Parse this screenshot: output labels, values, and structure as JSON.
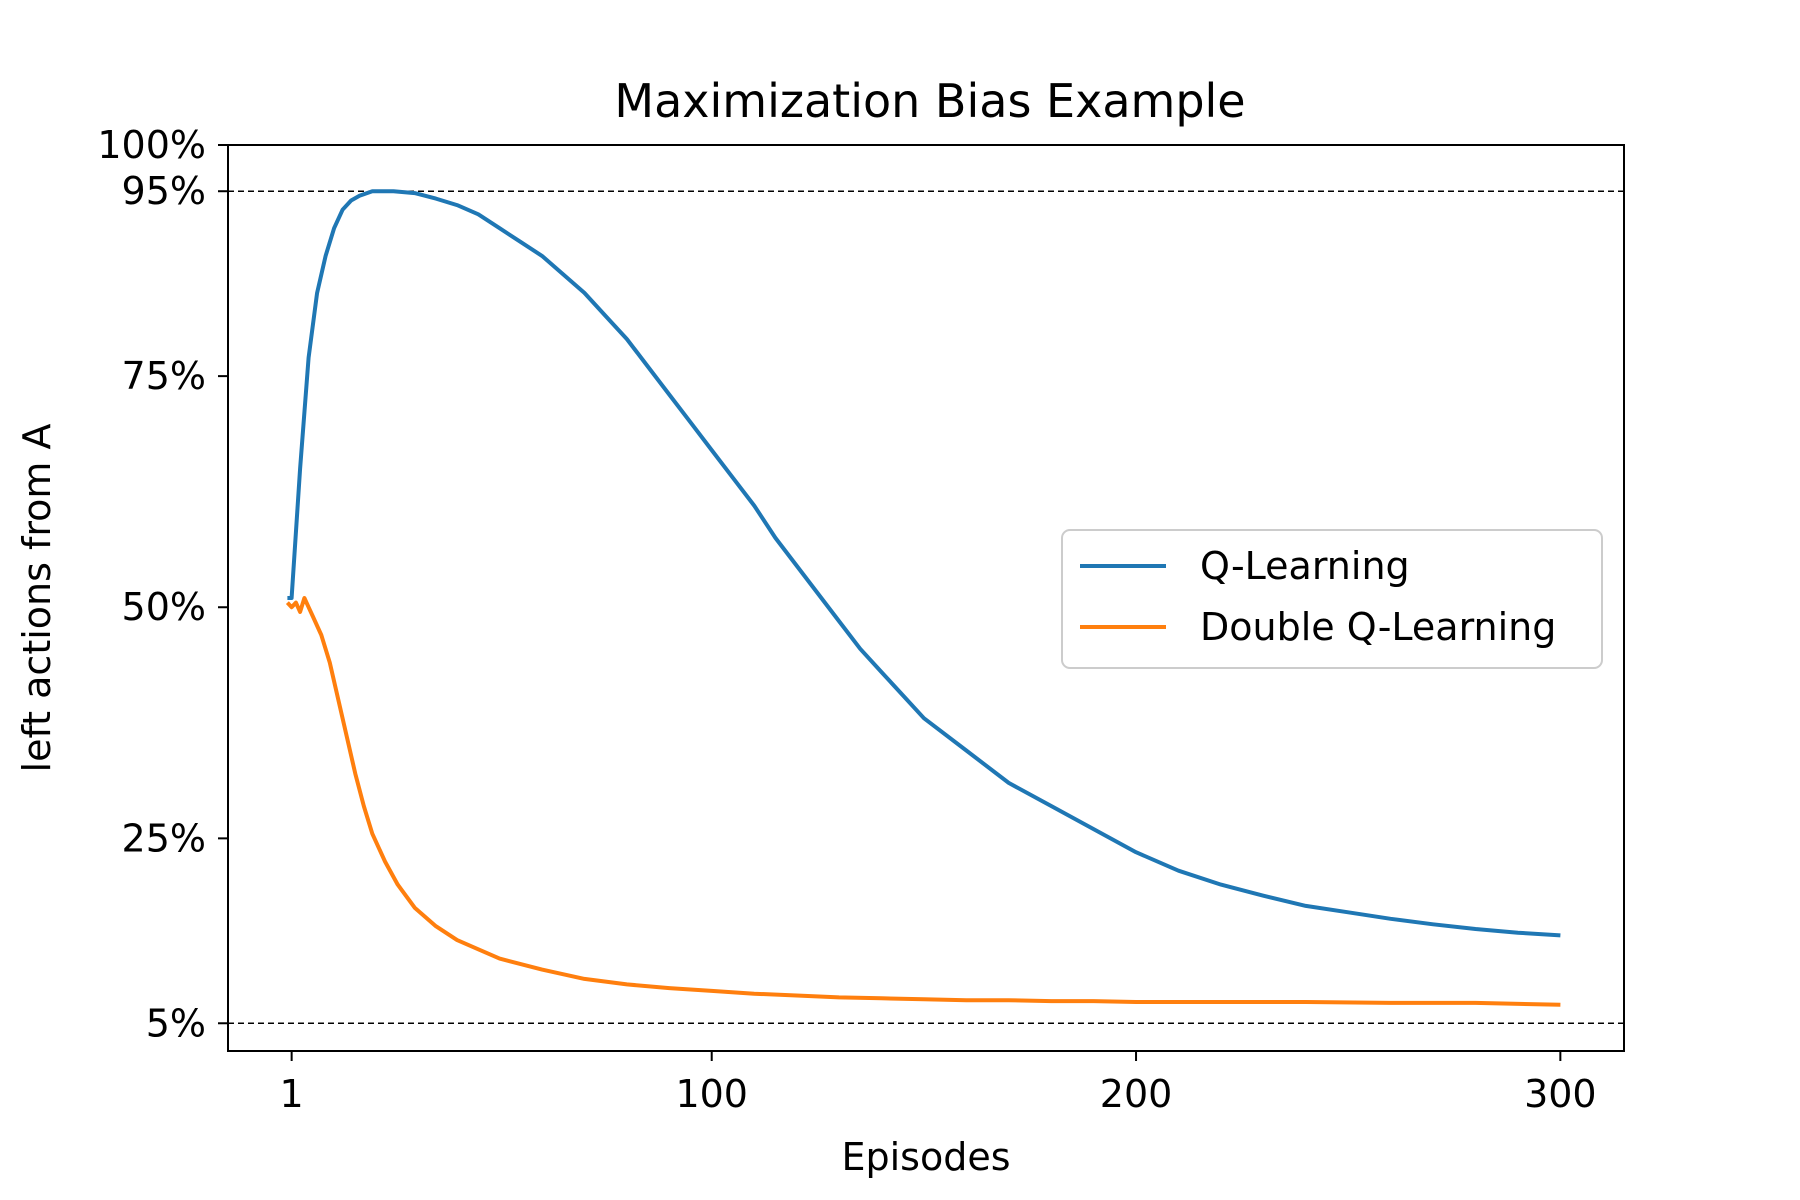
{
  "chart_data": {
    "type": "line",
    "title": "Maximization Bias Example",
    "xlabel": "Episodes",
    "ylabel": "left actions from A",
    "xlim": [
      -14,
      315
    ],
    "ylim": [
      0.02,
      1.0
    ],
    "xticks": [
      {
        "value": 1,
        "label": "1"
      },
      {
        "value": 100,
        "label": "100"
      },
      {
        "value": 200,
        "label": "200"
      },
      {
        "value": 300,
        "label": "300"
      }
    ],
    "yticks": [
      {
        "value": 0.05,
        "label": "5%"
      },
      {
        "value": 0.25,
        "label": "25%"
      },
      {
        "value": 0.5,
        "label": "50%"
      },
      {
        "value": 0.75,
        "label": "75%"
      },
      {
        "value": 0.95,
        "label": "95%"
      },
      {
        "value": 1.0,
        "label": "100%"
      }
    ],
    "reference_lines": [
      {
        "y": 0.95,
        "style": "dashed"
      },
      {
        "y": 0.05,
        "style": "dashed"
      }
    ],
    "legend_position": "center-right",
    "series": [
      {
        "name": "Q-Learning",
        "color": "#1f77b4",
        "x": [
          0,
          1,
          3,
          5,
          7,
          9,
          11,
          13,
          15,
          17,
          20,
          25,
          30,
          35,
          40,
          45,
          50,
          55,
          60,
          65,
          70,
          75,
          80,
          85,
          90,
          95,
          100,
          105,
          110,
          115,
          120,
          125,
          130,
          135,
          140,
          145,
          150,
          160,
          170,
          180,
          190,
          200,
          210,
          220,
          230,
          240,
          250,
          260,
          270,
          280,
          290,
          300
        ],
        "y": [
          0.51,
          0.51,
          0.65,
          0.77,
          0.84,
          0.88,
          0.91,
          0.93,
          0.94,
          0.945,
          0.95,
          0.95,
          0.948,
          0.942,
          0.935,
          0.925,
          0.91,
          0.895,
          0.88,
          0.86,
          0.84,
          0.815,
          0.79,
          0.76,
          0.73,
          0.7,
          0.67,
          0.64,
          0.61,
          0.575,
          0.545,
          0.515,
          0.485,
          0.455,
          0.43,
          0.405,
          0.38,
          0.345,
          0.31,
          0.285,
          0.26,
          0.235,
          0.215,
          0.2,
          0.188,
          0.177,
          0.17,
          0.163,
          0.157,
          0.152,
          0.148,
          0.145
        ]
      },
      {
        "name": "Double Q-Learning",
        "color": "#ff7f0e",
        "x": [
          0,
          1,
          2,
          3,
          4,
          5,
          6,
          8,
          10,
          12,
          14,
          16,
          18,
          20,
          23,
          26,
          30,
          35,
          40,
          45,
          50,
          60,
          70,
          80,
          90,
          100,
          110,
          120,
          130,
          140,
          150,
          160,
          170,
          180,
          190,
          200,
          220,
          240,
          260,
          280,
          300
        ],
        "y": [
          0.505,
          0.5,
          0.505,
          0.495,
          0.51,
          0.5,
          0.49,
          0.47,
          0.44,
          0.4,
          0.36,
          0.32,
          0.285,
          0.255,
          0.225,
          0.2,
          0.175,
          0.155,
          0.14,
          0.13,
          0.12,
          0.108,
          0.098,
          0.092,
          0.088,
          0.085,
          0.082,
          0.08,
          0.078,
          0.077,
          0.076,
          0.075,
          0.075,
          0.074,
          0.074,
          0.073,
          0.073,
          0.073,
          0.072,
          0.072,
          0.07
        ]
      }
    ]
  }
}
